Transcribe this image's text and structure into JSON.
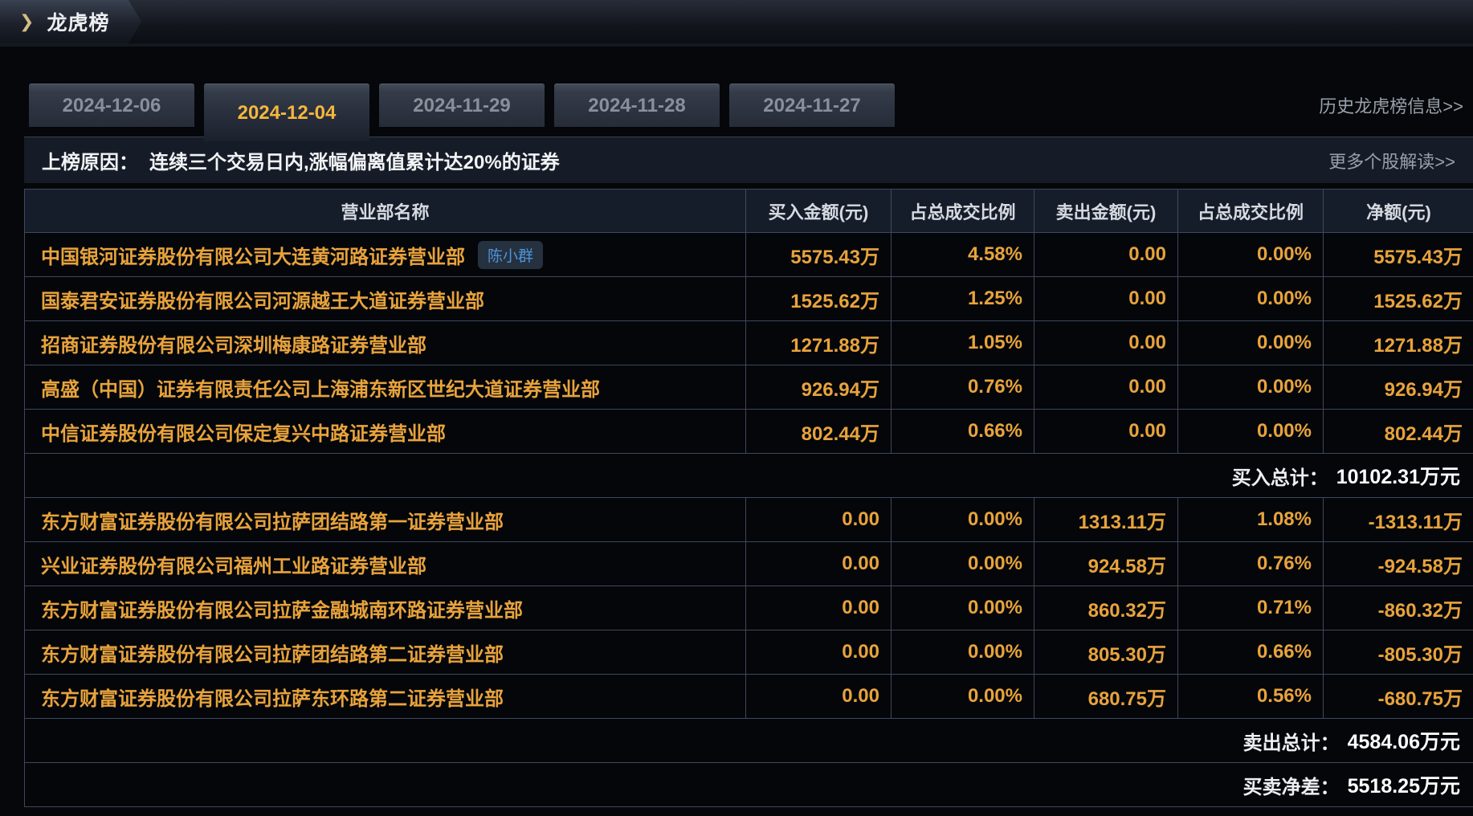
{
  "header": {
    "title": "龙虎榜",
    "chevron_icon": "chevron-right"
  },
  "tabs": [
    {
      "label": "2024-12-06",
      "active": false
    },
    {
      "label": "2024-12-04",
      "active": true
    },
    {
      "label": "2024-11-29",
      "active": false
    },
    {
      "label": "2024-11-28",
      "active": false
    },
    {
      "label": "2024-11-27",
      "active": false
    }
  ],
  "links": {
    "history": "历史龙虎榜信息>>",
    "more": "更多个股解读>>"
  },
  "reason": {
    "label": "上榜原因：",
    "text": "连续三个交易日内,涨幅偏离值累计达20%的证券"
  },
  "table": {
    "columns": [
      "营业部名称",
      "买入金额(元)",
      "占总成交比例",
      "卖出金额(元)",
      "占总成交比例",
      "净额(元)"
    ],
    "buy_rows": [
      {
        "name": "中国银河证券股份有限公司大连黄河路证券营业部",
        "tag": "陈小群",
        "buy": "5575.43万",
        "buy_ratio": "4.58%",
        "sell": "0.00",
        "sell_ratio": "0.00%",
        "net": "5575.43万"
      },
      {
        "name": "国泰君安证券股份有限公司河源越王大道证券营业部",
        "buy": "1525.62万",
        "buy_ratio": "1.25%",
        "sell": "0.00",
        "sell_ratio": "0.00%",
        "net": "1525.62万"
      },
      {
        "name": "招商证券股份有限公司深圳梅康路证券营业部",
        "buy": "1271.88万",
        "buy_ratio": "1.05%",
        "sell": "0.00",
        "sell_ratio": "0.00%",
        "net": "1271.88万"
      },
      {
        "name": "高盛（中国）证券有限责任公司上海浦东新区世纪大道证券营业部",
        "buy": "926.94万",
        "buy_ratio": "0.76%",
        "sell": "0.00",
        "sell_ratio": "0.00%",
        "net": "926.94万"
      },
      {
        "name": "中信证券股份有限公司保定复兴中路证券营业部",
        "buy": "802.44万",
        "buy_ratio": "0.66%",
        "sell": "0.00",
        "sell_ratio": "0.00%",
        "net": "802.44万"
      }
    ],
    "buy_total": {
      "label": "买入总计：",
      "value": "10102.31万元"
    },
    "sell_rows": [
      {
        "name": "东方财富证券股份有限公司拉萨团结路第一证券营业部",
        "buy": "0.00",
        "buy_ratio": "0.00%",
        "sell": "1313.11万",
        "sell_ratio": "1.08%",
        "net": "-1313.11万"
      },
      {
        "name": "兴业证券股份有限公司福州工业路证券营业部",
        "buy": "0.00",
        "buy_ratio": "0.00%",
        "sell": "924.58万",
        "sell_ratio": "0.76%",
        "net": "-924.58万"
      },
      {
        "name": "东方财富证券股份有限公司拉萨金融城南环路证券营业部",
        "buy": "0.00",
        "buy_ratio": "0.00%",
        "sell": "860.32万",
        "sell_ratio": "0.71%",
        "net": "-860.32万"
      },
      {
        "name": "东方财富证券股份有限公司拉萨团结路第二证券营业部",
        "buy": "0.00",
        "buy_ratio": "0.00%",
        "sell": "805.30万",
        "sell_ratio": "0.66%",
        "net": "-805.30万"
      },
      {
        "name": "东方财富证券股份有限公司拉萨东环路第二证券营业部",
        "buy": "0.00",
        "buy_ratio": "0.00%",
        "sell": "680.75万",
        "sell_ratio": "0.56%",
        "net": "-680.75万"
      }
    ],
    "sell_total": {
      "label": "卖出总计：",
      "value": "4584.06万元"
    },
    "net_diff": {
      "label": "买卖净差：",
      "value": "5518.25万元"
    }
  },
  "colors": {
    "accent_gold": "#e8a33c",
    "active_tab_gold": "#f5b73d",
    "badge_blue": "#4e94da",
    "link_gray": "#98a0ab",
    "border_slate": "#3d495c",
    "row_bg": "#04060a"
  }
}
